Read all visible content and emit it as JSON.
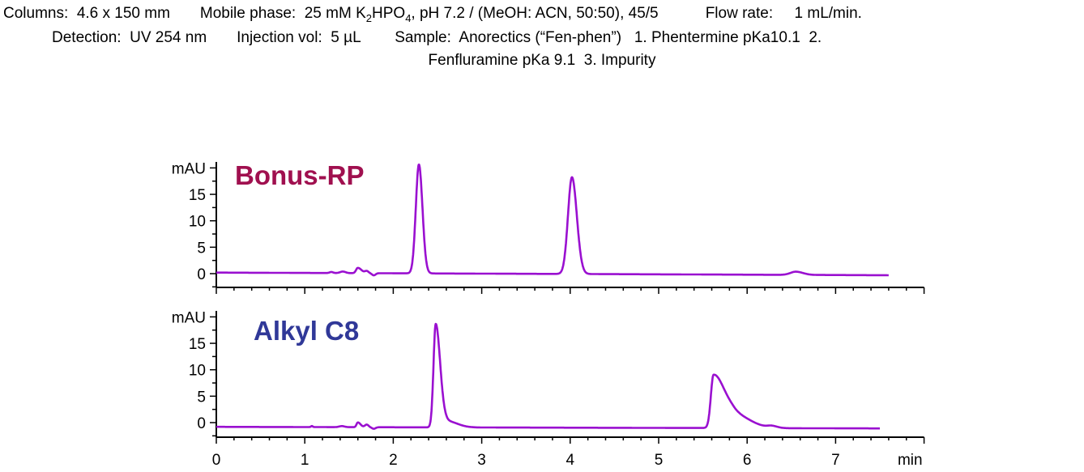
{
  "header": {
    "columns_label": "Columns:",
    "columns_value": "4.6 x 150 mm",
    "mobile_label": "Mobile phase:",
    "mobile_pre": "25 mM K",
    "mobile_sub1": "2",
    "mobile_mid": "HPO",
    "mobile_sub2": "4",
    "mobile_post": ", pH 7.2 / (MeOH: ACN, 50:50), 45/5",
    "flow_label": "Flow rate:",
    "flow_value": "1 mL/min.",
    "detection_label": "Detection:",
    "detection_value": "UV 254 nm",
    "injection_label": "Injection vol:",
    "injection_value": "5 µL",
    "sample_label": "Sample:",
    "sample_value": "Anorectics (“Fen-phen”)   1. Phentermine pKa10.1  2.",
    "line3": "Fenfluramine pKa 9.1  3. Impurity"
  },
  "chart_data": [
    {
      "type": "line",
      "title": "Bonus-RP",
      "title_color": "#a0104f",
      "line_color": "#9a10d0",
      "ylabel": "mAU",
      "xlabel": "min",
      "xlim": [
        0,
        8
      ],
      "ylim": [
        -2.5,
        21
      ],
      "yticks": [
        0,
        5,
        10,
        15
      ],
      "xrange_trace": [
        0,
        7.6
      ],
      "baseline": [
        0.2,
        -0.3
      ],
      "peaks": [
        {
          "t": 1.3,
          "h": 0.2,
          "sl": 0.02,
          "sr": 0.02
        },
        {
          "t": 1.43,
          "h": 0.3,
          "sl": 0.03,
          "sr": 0.03
        },
        {
          "t": 1.6,
          "h": 1.0,
          "sl": 0.02,
          "sr": 0.04
        },
        {
          "t": 1.7,
          "h": 0.4,
          "sl": 0.02,
          "sr": 0.02
        },
        {
          "t": 1.78,
          "h": -0.4,
          "sl": 0.02,
          "sr": 0.02
        },
        {
          "t": 2.29,
          "h": 20.6,
          "sl": 0.035,
          "sr": 0.04
        },
        {
          "t": 4.02,
          "h": 18.3,
          "sl": 0.045,
          "sr": 0.055
        },
        {
          "t": 6.55,
          "h": 0.6,
          "sl": 0.06,
          "sr": 0.08
        }
      ]
    },
    {
      "type": "line",
      "title": "Alkyl C8",
      "title_color": "#303898",
      "line_color": "#9a10d0",
      "ylabel": "mAU",
      "xlabel": "min",
      "xlim": [
        0,
        8
      ],
      "ylim": [
        -2.5,
        21
      ],
      "yticks": [
        0,
        5,
        10,
        15
      ],
      "xticks": [
        0,
        1,
        2,
        3,
        4,
        5,
        6,
        7
      ],
      "xrange_trace": [
        0,
        7.5
      ],
      "baseline": [
        -0.8,
        -1.1
      ],
      "peaks": [
        {
          "t": 1.08,
          "h": 0.2,
          "sl": 0.01,
          "sr": 0.01
        },
        {
          "t": 1.42,
          "h": 0.2,
          "sl": 0.03,
          "sr": 0.03
        },
        {
          "t": 1.6,
          "h": 0.9,
          "sl": 0.015,
          "sr": 0.03
        },
        {
          "t": 1.7,
          "h": 0.5,
          "sl": 0.02,
          "sr": 0.02
        },
        {
          "t": 1.78,
          "h": -0.3,
          "sl": 0.02,
          "sr": 0.02
        },
        {
          "t": 2.48,
          "h": 19.5,
          "sl": 0.025,
          "sr": 0.05
        },
        {
          "t": 2.6,
          "h": 1.2,
          "sl": 0.05,
          "sr": 0.12
        },
        {
          "t": 5.62,
          "h": 9.9,
          "sl": 0.03,
          "sr": 0.12
        },
        {
          "t": 5.85,
          "h": 2.5,
          "sl": 0.1,
          "sr": 0.18
        },
        {
          "t": 6.28,
          "h": 0.35,
          "sl": 0.05,
          "sr": 0.06
        }
      ]
    }
  ]
}
